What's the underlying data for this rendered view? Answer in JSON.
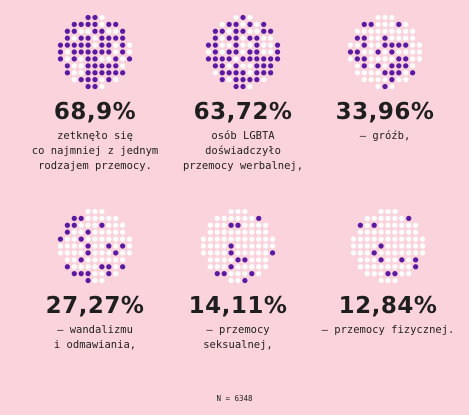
{
  "colors": {
    "background": "#fbd3dc",
    "filled_dot": "#5b1aa2",
    "empty_dot": "#ffffff",
    "text": "#1f1f1f"
  },
  "stats": [
    {
      "value": "68,9%",
      "fraction": 0.689,
      "description": "zetknęło się\nco najmniej z jednym\nrodzajem przemocy."
    },
    {
      "value": "63,72%",
      "fraction": 0.6372,
      "description": "osób LGBTA\ndoświadczyło\nprzemocy werbalnej,"
    },
    {
      "value": "33,96%",
      "fraction": 0.3396,
      "description": "– gróźb,"
    },
    {
      "value": "27,27%",
      "fraction": 0.2727,
      "description": "– wandalizmu\ni odmawiania,"
    },
    {
      "value": "14,11%",
      "fraction": 0.1411,
      "description": "– przemocy\nseksualnej,"
    },
    {
      "value": "12,84%",
      "fraction": 0.1284,
      "description": "– przemocy fizycznej."
    }
  ],
  "footnote": "N = 6348"
}
